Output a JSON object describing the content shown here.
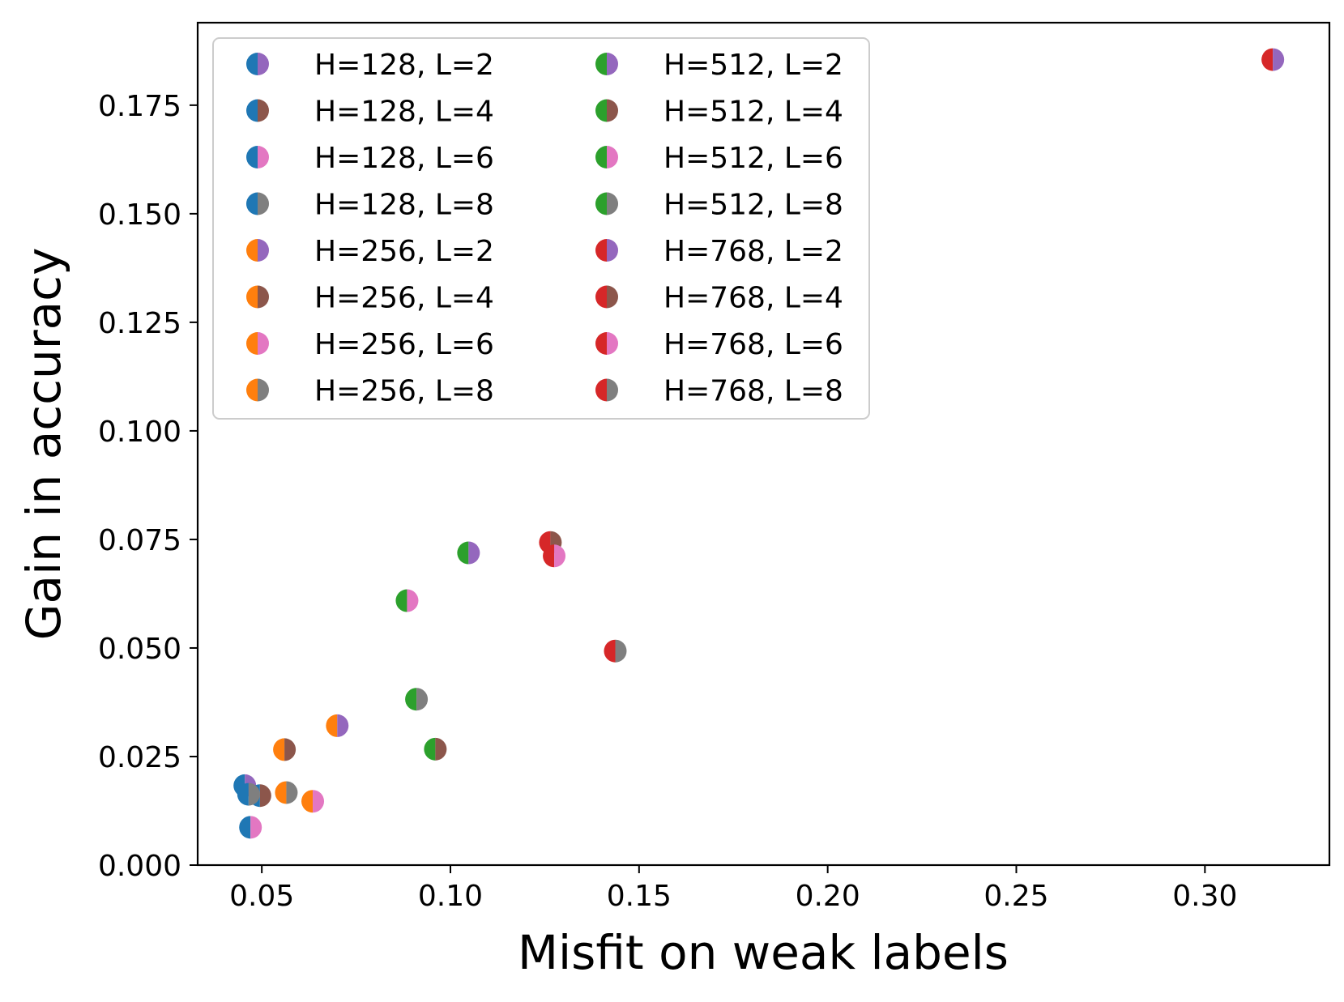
{
  "chart_data": {
    "type": "scatter",
    "title": "",
    "xlabel": "Misfit on weak labels",
    "ylabel": "Gain in accuracy",
    "xlim": [
      0.033,
      0.333
    ],
    "ylim": [
      0.0,
      0.194
    ],
    "xticks": [
      0.05,
      0.1,
      0.15,
      0.2,
      0.25,
      0.3
    ],
    "xtick_labels": [
      "0.05",
      "0.10",
      "0.15",
      "0.20",
      "0.25",
      "0.30"
    ],
    "yticks": [
      0.0,
      0.025,
      0.05,
      0.075,
      0.1,
      0.125,
      0.15,
      0.175
    ],
    "ytick_labels": [
      "0.000",
      "0.025",
      "0.050",
      "0.075",
      "0.100",
      "0.125",
      "0.150",
      "0.175"
    ],
    "grid": false,
    "legend_position": "top-left",
    "legend_columns": 2,
    "hidden_size_colors": {
      "128": "#1f77b4",
      "256": "#ff7f0e",
      "512": "#2ca02c",
      "768": "#d62728"
    },
    "layer_colors": {
      "2": "#9467bd",
      "4": "#8c564b",
      "6": "#e377c2",
      "8": "#7f7f7f"
    },
    "series": [
      {
        "name": "H=128, L=2",
        "left_color": "#1f77b4",
        "right_color": "#9467bd",
        "x": 0.0455,
        "y": 0.0183
      },
      {
        "name": "H=128, L=4",
        "left_color": "#1f77b4",
        "right_color": "#8c564b",
        "x": 0.0495,
        "y": 0.016
      },
      {
        "name": "H=128, L=6",
        "left_color": "#1f77b4",
        "right_color": "#e377c2",
        "x": 0.047,
        "y": 0.0087
      },
      {
        "name": "H=128, L=8",
        "left_color": "#1f77b4",
        "right_color": "#7f7f7f",
        "x": 0.0465,
        "y": 0.0163
      },
      {
        "name": "H=256, L=2",
        "left_color": "#ff7f0e",
        "right_color": "#9467bd",
        "x": 0.07,
        "y": 0.0321
      },
      {
        "name": "H=256, L=4",
        "left_color": "#ff7f0e",
        "right_color": "#8c564b",
        "x": 0.056,
        "y": 0.0266
      },
      {
        "name": "H=256, L=6",
        "left_color": "#ff7f0e",
        "right_color": "#e377c2",
        "x": 0.0635,
        "y": 0.0147
      },
      {
        "name": "H=256, L=8",
        "left_color": "#ff7f0e",
        "right_color": "#7f7f7f",
        "x": 0.0565,
        "y": 0.0167
      },
      {
        "name": "H=512, L=2",
        "left_color": "#2ca02c",
        "right_color": "#9467bd",
        "x": 0.1048,
        "y": 0.0719
      },
      {
        "name": "H=512, L=4",
        "left_color": "#2ca02c",
        "right_color": "#8c564b",
        "x": 0.096,
        "y": 0.0267
      },
      {
        "name": "H=512, L=6",
        "left_color": "#2ca02c",
        "right_color": "#e377c2",
        "x": 0.0885,
        "y": 0.0609
      },
      {
        "name": "H=512, L=8",
        "left_color": "#2ca02c",
        "right_color": "#7f7f7f",
        "x": 0.091,
        "y": 0.0382
      },
      {
        "name": "H=768, L=2",
        "left_color": "#d62728",
        "right_color": "#9467bd",
        "x": 0.318,
        "y": 0.1855
      },
      {
        "name": "H=768, L=4",
        "left_color": "#d62728",
        "right_color": "#8c564b",
        "x": 0.1265,
        "y": 0.0743
      },
      {
        "name": "H=768, L=6",
        "left_color": "#d62728",
        "right_color": "#e377c2",
        "x": 0.1275,
        "y": 0.0712
      },
      {
        "name": "H=768, L=8",
        "left_color": "#d62728",
        "right_color": "#7f7f7f",
        "x": 0.1437,
        "y": 0.0493
      }
    ]
  }
}
